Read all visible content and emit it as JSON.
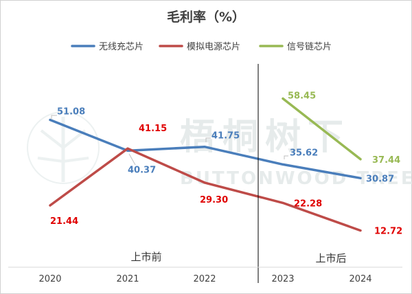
{
  "chart_data": {
    "type": "line",
    "title": "毛利率（%）",
    "categories": [
      "2020",
      "2021",
      "2022",
      "2023",
      "2024"
    ],
    "series": [
      {
        "name": "无线充芯片",
        "color": "#4a7ebb",
        "values": [
          51.08,
          40.37,
          41.75,
          35.62,
          30.87
        ]
      },
      {
        "name": "模拟电源芯片",
        "color": "#be4b48",
        "values": [
          21.44,
          41.15,
          29.3,
          22.28,
          12.72
        ]
      },
      {
        "name": "信号链芯片",
        "color": "#98b954",
        "values": [
          null,
          null,
          null,
          58.45,
          37.44
        ]
      }
    ],
    "label_colors": {
      "无线充芯片": "#4a7ebb",
      "模拟电源芯片": "#e00000",
      "信号链芯片": "#98b954"
    },
    "value_labels": [
      [
        "51.08",
        "40.37",
        "41.75",
        "35.62",
        "30.87"
      ],
      [
        "21.44",
        "41.15",
        "29.30",
        "22.28",
        "12.72"
      ],
      [
        "",
        "",
        "",
        "58.45",
        "37.44"
      ]
    ],
    "periods": [
      "上市前",
      "上市后"
    ],
    "divider_between": [
      "2022",
      "2023"
    ],
    "ylim": [
      0,
      70
    ],
    "legend_position": "top",
    "grid": false
  },
  "watermark": {
    "cn": "梧桐树下",
    "en": "BUTTONWOOD TREE"
  }
}
